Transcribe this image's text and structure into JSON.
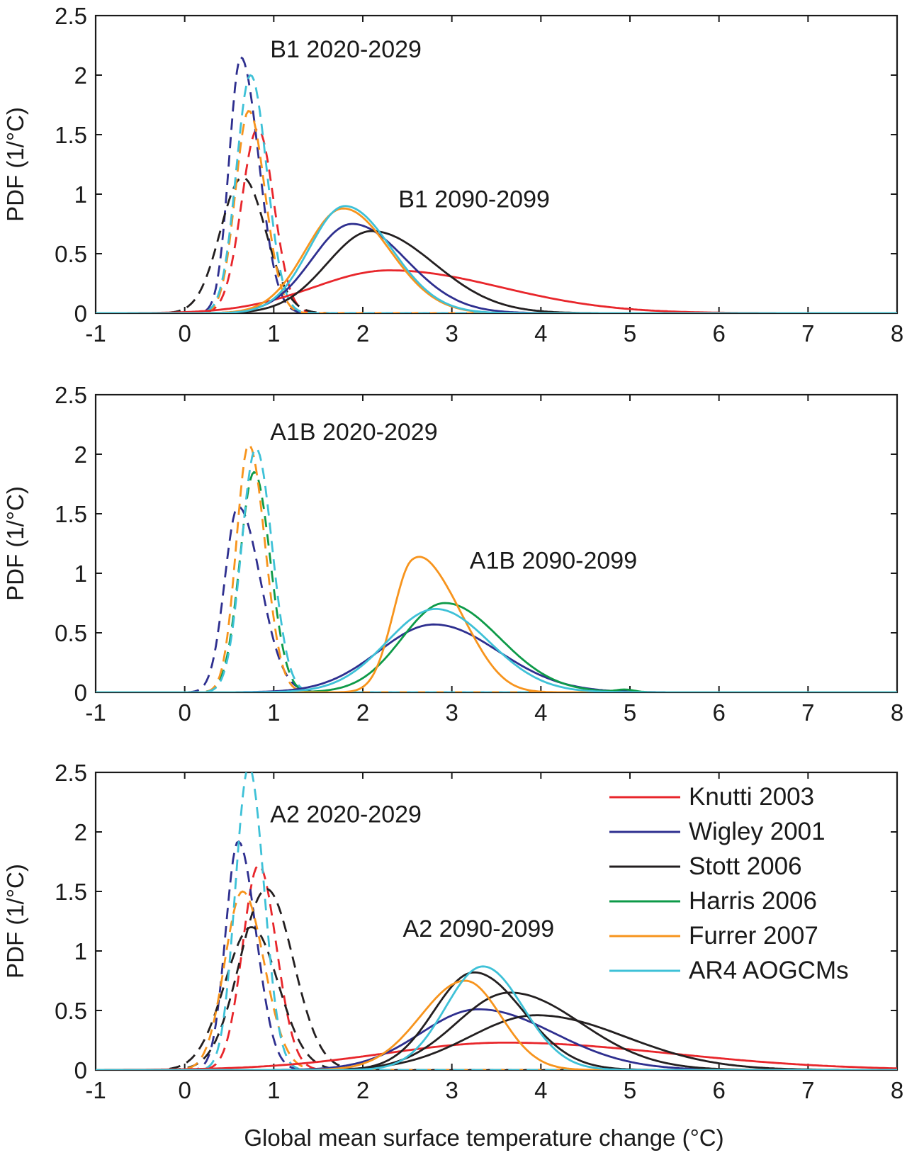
{
  "chart_data": {
    "type": "line",
    "xlabel": "Global mean surface temperature change (°C)",
    "models": [
      {
        "name": "Knutti 2003",
        "color": "#e8262b"
      },
      {
        "name": "Wigley 2001",
        "color": "#2e2f8f"
      },
      {
        "name": "Stott 2006",
        "color": "#231f20"
      },
      {
        "name": "Harris 2006",
        "color": "#0d9a48"
      },
      {
        "name": "Furrer 2007",
        "color": "#f7941d"
      },
      {
        "name": "AR4 AOGCMs",
        "color": "#3ec1d7"
      }
    ],
    "legend_position": "right of bottom panel",
    "panels": [
      {
        "id": "b1",
        "ylabel": "PDF (1/°C)",
        "xlim": [
          -1,
          8
        ],
        "ylim": [
          0,
          2.5
        ],
        "xticks": [
          "-1",
          "0",
          "1",
          "2",
          "3",
          "4",
          "5",
          "6",
          "7",
          "8"
        ],
        "yticks": [
          "0",
          "0.5",
          "1",
          "1.5",
          "2",
          "2.5"
        ],
        "annotations": [
          {
            "text": "B1 2020-2029",
            "x": 0.96,
            "y": 2.15
          },
          {
            "text": "B1 2090-2099",
            "x": 2.4,
            "y": 0.89
          }
        ],
        "series": [
          {
            "model": 0,
            "style": "dashed",
            "peaks": [
              {
                "mu": 0.82,
                "sl": 0.18,
                "sr": 0.18,
                "a": 1.55
              }
            ]
          },
          {
            "model": 1,
            "style": "dashed",
            "peaks": [
              {
                "mu": 0.63,
                "sl": 0.13,
                "sr": 0.2,
                "a": 2.15
              }
            ]
          },
          {
            "model": 2,
            "style": "dashed",
            "peaks": [
              {
                "mu": 0.65,
                "sl": 0.25,
                "sr": 0.26,
                "a": 1.14
              }
            ]
          },
          {
            "model": 4,
            "style": "dashed",
            "peaks": [
              {
                "mu": 0.72,
                "sl": 0.15,
                "sr": 0.18,
                "a": 1.7
              }
            ]
          },
          {
            "model": 5,
            "style": "dashed",
            "peaks": [
              {
                "mu": 0.74,
                "sl": 0.16,
                "sr": 0.18,
                "a": 2.0
              }
            ]
          },
          {
            "model": 0,
            "style": "solid",
            "peaks": [
              {
                "mu": 2.3,
                "sl": 0.85,
                "sr": 1.25,
                "a": 0.36
              }
            ]
          },
          {
            "model": 1,
            "style": "solid",
            "peaks": [
              {
                "mu": 1.88,
                "sl": 0.45,
                "sr": 0.6,
                "a": 0.75
              }
            ]
          },
          {
            "model": 2,
            "style": "solid",
            "peaks": [
              {
                "mu": 2.1,
                "sl": 0.5,
                "sr": 0.7,
                "a": 0.69
              }
            ]
          },
          {
            "model": 4,
            "style": "solid",
            "peaks": [
              {
                "mu": 1.78,
                "sl": 0.42,
                "sr": 0.52,
                "a": 0.88
              }
            ]
          },
          {
            "model": 5,
            "style": "solid",
            "peaks": [
              {
                "mu": 1.8,
                "sl": 0.4,
                "sr": 0.52,
                "a": 0.9
              }
            ]
          }
        ]
      },
      {
        "id": "a1b",
        "ylabel": "PDF (1/°C)",
        "xlim": [
          -1,
          8
        ],
        "ylim": [
          0,
          2.5
        ],
        "xticks": [
          "-1",
          "0",
          "1",
          "2",
          "3",
          "4",
          "5",
          "6",
          "7",
          "8"
        ],
        "yticks": [
          "0",
          "0.5",
          "1",
          "1.5",
          "2",
          "2.5"
        ],
        "annotations": [
          {
            "text": "A1B 2020-2029",
            "x": 0.96,
            "y": 2.12
          },
          {
            "text": "A1B 2090-2099",
            "x": 3.2,
            "y": 1.04
          }
        ],
        "series": [
          {
            "model": 1,
            "style": "dashed",
            "peaks": [
              {
                "mu": 0.6,
                "sl": 0.15,
                "sr": 0.25,
                "a": 1.56
              }
            ]
          },
          {
            "model": 3,
            "style": "dashed",
            "peaks": [
              {
                "mu": 0.78,
                "sl": 0.16,
                "sr": 0.18,
                "a": 1.85
              }
            ]
          },
          {
            "model": 4,
            "style": "dashed",
            "peaks": [
              {
                "mu": 0.72,
                "sl": 0.14,
                "sr": 0.18,
                "a": 2.08
              }
            ]
          },
          {
            "model": 5,
            "style": "dashed",
            "peaks": [
              {
                "mu": 0.8,
                "sl": 0.16,
                "sr": 0.18,
                "a": 2.05
              }
            ]
          },
          {
            "model": 1,
            "style": "solid",
            "peaks": [
              {
                "mu": 2.8,
                "sl": 0.62,
                "sr": 0.72,
                "a": 0.57
              }
            ]
          },
          {
            "model": 3,
            "style": "solid",
            "peaks": [
              {
                "mu": 2.92,
                "sl": 0.48,
                "sr": 0.62,
                "a": 0.75
              },
              {
                "mu": 4.95,
                "sl": 0.1,
                "sr": 0.1,
                "a": 0.02
              }
            ]
          },
          {
            "model": 4,
            "style": "solid",
            "peaks": [
              {
                "mu": 2.55,
                "sl": 0.22,
                "sr": 0.32,
                "a": 1.0
              },
              {
                "mu": 3.05,
                "sl": 0.3,
                "sr": 0.32,
                "a": 0.45
              }
            ]
          },
          {
            "model": 5,
            "style": "solid",
            "peaks": [
              {
                "mu": 2.82,
                "sl": 0.55,
                "sr": 0.6,
                "a": 0.7
              }
            ]
          }
        ]
      },
      {
        "id": "a2",
        "ylabel": "PDF (1/°C)",
        "xlim": [
          -1,
          8
        ],
        "ylim": [
          0,
          2.5
        ],
        "xticks": [
          "-1",
          "0",
          "1",
          "2",
          "3",
          "4",
          "5",
          "6",
          "7",
          "8"
        ],
        "yticks": [
          "0",
          "0.5",
          "1",
          "1.5",
          "2",
          "2.5"
        ],
        "annotations": [
          {
            "text": "A2 2020-2029",
            "x": 0.96,
            "y": 2.08
          },
          {
            "text": "A2 2090-2099",
            "x": 2.45,
            "y": 1.12
          }
        ],
        "series": [
          {
            "model": 0,
            "style": "dashed",
            "peaks": [
              {
                "mu": 0.83,
                "sl": 0.18,
                "sr": 0.2,
                "a": 1.72
              }
            ]
          },
          {
            "model": 1,
            "style": "dashed",
            "peaks": [
              {
                "mu": 0.6,
                "sl": 0.14,
                "sr": 0.2,
                "a": 1.92
              }
            ]
          },
          {
            "model": 2,
            "style": "dashed",
            "peaks": [
              {
                "mu": 0.75,
                "sl": 0.3,
                "sr": 0.3,
                "a": 1.2
              }
            ]
          },
          {
            "model": 2,
            "style": "dashed",
            "peaks": [
              {
                "mu": 0.92,
                "sl": 0.3,
                "sr": 0.3,
                "a": 1.52
              }
            ]
          },
          {
            "model": 4,
            "style": "dashed",
            "peaks": [
              {
                "mu": 0.65,
                "sl": 0.2,
                "sr": 0.24,
                "a": 1.5
              }
            ]
          },
          {
            "model": 5,
            "style": "dashed",
            "peaks": [
              {
                "mu": 0.72,
                "sl": 0.15,
                "sr": 0.17,
                "a": 2.55
              }
            ]
          },
          {
            "model": 0,
            "style": "solid",
            "peaks": [
              {
                "mu": 3.6,
                "sl": 1.35,
                "sr": 1.85,
                "a": 0.23
              }
            ]
          },
          {
            "model": 1,
            "style": "solid",
            "peaks": [
              {
                "mu": 3.3,
                "sl": 0.65,
                "sr": 0.85,
                "a": 0.51
              }
            ]
          },
          {
            "model": 2,
            "style": "solid",
            "peaks": [
              {
                "mu": 3.25,
                "sl": 0.45,
                "sr": 0.55,
                "a": 0.82
              }
            ]
          },
          {
            "model": 2,
            "style": "solid",
            "peaks": [
              {
                "mu": 3.65,
                "sl": 0.6,
                "sr": 0.8,
                "a": 0.65
              }
            ]
          },
          {
            "model": 2,
            "style": "solid",
            "peaks": [
              {
                "mu": 3.95,
                "sl": 0.75,
                "sr": 1.0,
                "a": 0.46
              }
            ]
          },
          {
            "model": 4,
            "style": "solid",
            "peaks": [
              {
                "mu": 3.15,
                "sl": 0.5,
                "sr": 0.4,
                "a": 0.75
              }
            ]
          },
          {
            "model": 5,
            "style": "solid",
            "peaks": [
              {
                "mu": 3.35,
                "sl": 0.42,
                "sr": 0.45,
                "a": 0.87
              }
            ]
          }
        ]
      }
    ]
  }
}
